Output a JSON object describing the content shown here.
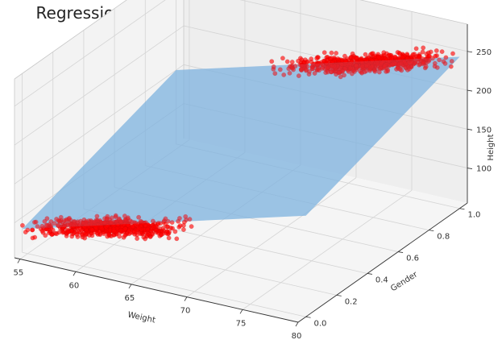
{
  "chart_data": {
    "type": "scatter",
    "title": "Regression: Height ~ Weight + Gender",
    "xlabel": "Weight",
    "ylabel": "Gender",
    "zlabel": "Height",
    "xlim": [
      54.5,
      80
    ],
    "ylim": [
      -0.05,
      1.05
    ],
    "zlim": [
      55,
      285
    ],
    "x_ticks": [
      "55",
      "60",
      "65",
      "70",
      "75",
      "80"
    ],
    "y_ticks": [
      "0.0",
      "0.2",
      "0.4",
      "0.6",
      "0.8",
      "1.0"
    ],
    "z_ticks": [
      "100",
      "150",
      "200",
      "250"
    ],
    "grid": true,
    "colors": {
      "points": "#ff0000",
      "plane": "#7fb4e0",
      "pane": "#f2f2f2"
    },
    "series": [
      {
        "gender": 0,
        "weight_range": [
          54.5,
          70
        ],
        "height_range": [
          85,
          150
        ],
        "points": [
          [
            55,
            85
          ],
          [
            56.5,
            92
          ],
          [
            58,
            99
          ],
          [
            60,
            104
          ],
          [
            62,
            112
          ],
          [
            64,
            118
          ],
          [
            66,
            124
          ],
          [
            68,
            131
          ],
          [
            70,
            146
          ]
        ]
      },
      {
        "gender": 1,
        "weight_range": [
          63,
          80
        ],
        "height_range": [
          180,
          250
        ],
        "points": [
          [
            63,
            182
          ],
          [
            65,
            190
          ],
          [
            67,
            197
          ],
          [
            69,
            204
          ],
          [
            71,
            212
          ],
          [
            73,
            220
          ],
          [
            75,
            229
          ],
          [
            77,
            237
          ],
          [
            79,
            246
          ]
        ]
      }
    ],
    "regression_plane": {
      "corners": [
        {
          "weight": 54.5,
          "gender": 0,
          "height": 85
        },
        {
          "weight": 80,
          "gender": 0,
          "height": 185
        },
        {
          "weight": 80,
          "gender": 1,
          "height": 250
        },
        {
          "weight": 54.5,
          "gender": 1,
          "height": 150
        }
      ]
    }
  }
}
